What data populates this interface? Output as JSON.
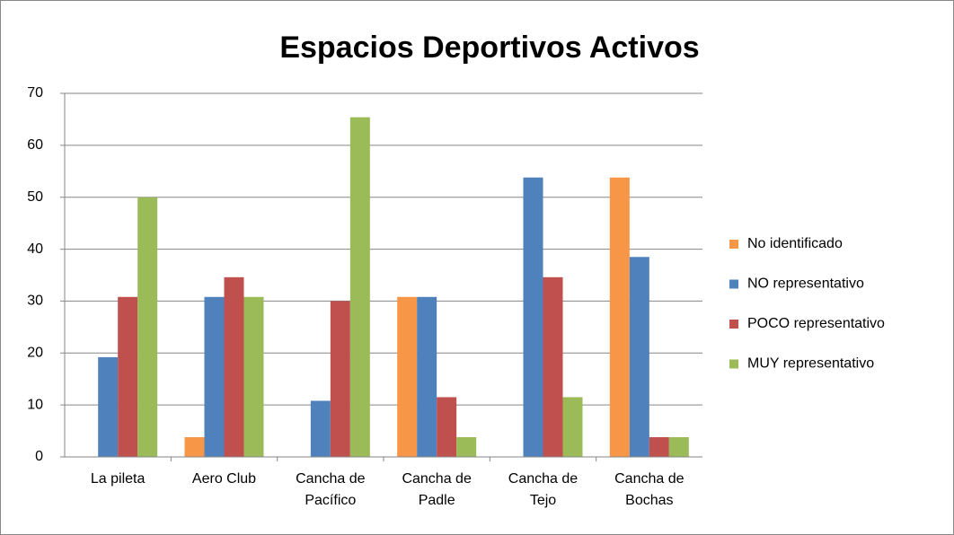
{
  "chart_data": {
    "type": "bar",
    "title": "Espacios Deportivos Activos",
    "categories": [
      "La pileta",
      "Aero Club",
      "Cancha de Pacífico",
      "Cancha de Padle",
      "Cancha de Tejo",
      "Cancha de Bochas"
    ],
    "series": [
      {
        "name": "No identificado",
        "color": "#f79646",
        "values": [
          0,
          3.8,
          0,
          30.8,
          0,
          53.8
        ]
      },
      {
        "name": "NO representativo",
        "color": "#4f81bd",
        "values": [
          19.2,
          30.8,
          10.8,
          30.8,
          53.8,
          38.5
        ]
      },
      {
        "name": "POCO representativo",
        "color": "#c0504d",
        "values": [
          30.8,
          34.6,
          30,
          11.5,
          34.6,
          3.8
        ]
      },
      {
        "name": "MUY representativo",
        "color": "#9bbb59",
        "values": [
          50,
          30.8,
          65.4,
          3.8,
          11.5,
          3.8
        ]
      }
    ],
    "ylim": [
      0,
      70
    ],
    "yticks": [
      0,
      10,
      20,
      30,
      40,
      50,
      60,
      70
    ],
    "grid": true,
    "legend": "right"
  }
}
